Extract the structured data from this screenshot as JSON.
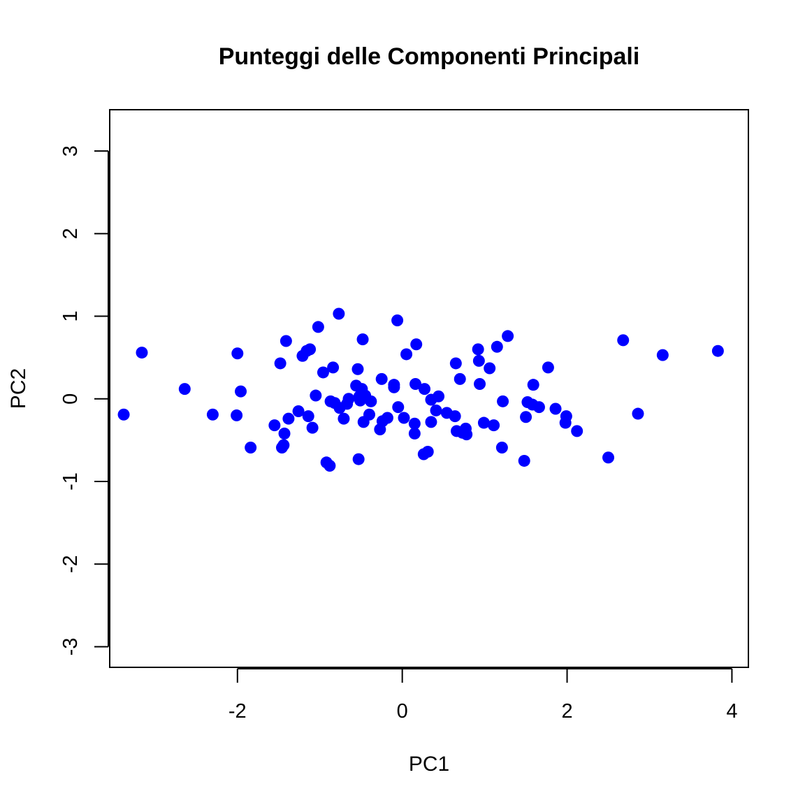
{
  "chart_data": {
    "type": "scatter",
    "title": "Punteggi delle Componenti Principali",
    "xlabel": "PC1",
    "ylabel": "PC2",
    "xlim": [
      -3.55,
      4.2
    ],
    "ylim": [
      -3.25,
      3.5
    ],
    "xticks": [
      -2,
      0,
      2,
      4
    ],
    "yticks": [
      -3,
      -2,
      -1,
      0,
      1,
      2,
      3
    ],
    "xtick_labels": [
      "-2",
      "0",
      "2",
      "4"
    ],
    "ytick_labels": [
      "-3",
      "-2",
      "-1",
      "0",
      "1",
      "2",
      "3"
    ],
    "grid": false,
    "point_color": "#0000ff",
    "points": [
      [
        -3.38,
        -0.19
      ],
      [
        -3.16,
        0.56
      ],
      [
        -2.64,
        0.12
      ],
      [
        -2.3,
        -0.19
      ],
      [
        -2.0,
        0.55
      ],
      [
        -2.01,
        -0.2
      ],
      [
        -1.96,
        0.09
      ],
      [
        -1.84,
        -0.59
      ],
      [
        -1.55,
        -0.32
      ],
      [
        -1.48,
        0.43
      ],
      [
        -1.46,
        -0.59
      ],
      [
        -1.44,
        -0.56
      ],
      [
        -1.43,
        -0.42
      ],
      [
        -1.41,
        0.7
      ],
      [
        -1.38,
        -0.24
      ],
      [
        -1.26,
        -0.15
      ],
      [
        -1.21,
        0.52
      ],
      [
        -1.16,
        0.58
      ],
      [
        -1.14,
        -0.21
      ],
      [
        -1.12,
        0.6
      ],
      [
        -1.09,
        -0.35
      ],
      [
        -1.05,
        0.04
      ],
      [
        -1.02,
        0.87
      ],
      [
        -0.96,
        0.32
      ],
      [
        -0.92,
        -0.77
      ],
      [
        -0.88,
        -0.81
      ],
      [
        -0.87,
        -0.03
      ],
      [
        -0.84,
        0.38
      ],
      [
        -0.82,
        -0.05
      ],
      [
        -0.77,
        1.03
      ],
      [
        -0.76,
        -0.11
      ],
      [
        -0.71,
        -0.24
      ],
      [
        -0.67,
        -0.06
      ],
      [
        -0.65,
        0.0
      ],
      [
        -0.56,
        0.16
      ],
      [
        -0.54,
        0.36
      ],
      [
        -0.53,
        -0.73
      ],
      [
        -0.52,
        0.03
      ],
      [
        -0.51,
        -0.02
      ],
      [
        -0.49,
        0.12
      ],
      [
        -0.48,
        0.72
      ],
      [
        -0.47,
        -0.28
      ],
      [
        -0.45,
        0.04
      ],
      [
        -0.4,
        -0.19
      ],
      [
        -0.38,
        -0.03
      ],
      [
        -0.27,
        -0.37
      ],
      [
        -0.25,
        0.24
      ],
      [
        -0.24,
        -0.27
      ],
      [
        -0.18,
        -0.23
      ],
      [
        -0.1,
        0.17
      ],
      [
        -0.1,
        0.14
      ],
      [
        -0.06,
        0.95
      ],
      [
        -0.05,
        -0.1
      ],
      [
        0.02,
        -0.23
      ],
      [
        0.05,
        0.54
      ],
      [
        0.15,
        -0.3
      ],
      [
        0.15,
        -0.42
      ],
      [
        0.16,
        0.18
      ],
      [
        0.17,
        0.66
      ],
      [
        0.26,
        -0.67
      ],
      [
        0.27,
        0.12
      ],
      [
        0.31,
        -0.64
      ],
      [
        0.35,
        -0.01
      ],
      [
        0.35,
        -0.28
      ],
      [
        0.41,
        -0.14
      ],
      [
        0.44,
        0.03
      ],
      [
        0.54,
        -0.17
      ],
      [
        0.64,
        -0.21
      ],
      [
        0.65,
        0.43
      ],
      [
        0.66,
        -0.39
      ],
      [
        0.7,
        0.24
      ],
      [
        0.73,
        -0.41
      ],
      [
        0.77,
        -0.36
      ],
      [
        0.78,
        -0.43
      ],
      [
        0.92,
        0.6
      ],
      [
        0.93,
        0.46
      ],
      [
        0.94,
        0.18
      ],
      [
        0.99,
        -0.29
      ],
      [
        1.06,
        0.37
      ],
      [
        1.11,
        -0.32
      ],
      [
        1.15,
        0.63
      ],
      [
        1.21,
        -0.59
      ],
      [
        1.22,
        -0.03
      ],
      [
        1.28,
        0.76
      ],
      [
        1.48,
        -0.75
      ],
      [
        1.5,
        -0.22
      ],
      [
        1.52,
        -0.04
      ],
      [
        1.58,
        -0.07
      ],
      [
        1.59,
        0.17
      ],
      [
        1.66,
        -0.1
      ],
      [
        1.77,
        0.38
      ],
      [
        1.86,
        -0.12
      ],
      [
        1.98,
        -0.29
      ],
      [
        1.99,
        -0.21
      ],
      [
        2.12,
        -0.39
      ],
      [
        2.5,
        -0.71
      ],
      [
        2.68,
        0.71
      ],
      [
        2.86,
        -0.18
      ],
      [
        3.16,
        0.53
      ],
      [
        3.83,
        0.58
      ]
    ]
  }
}
